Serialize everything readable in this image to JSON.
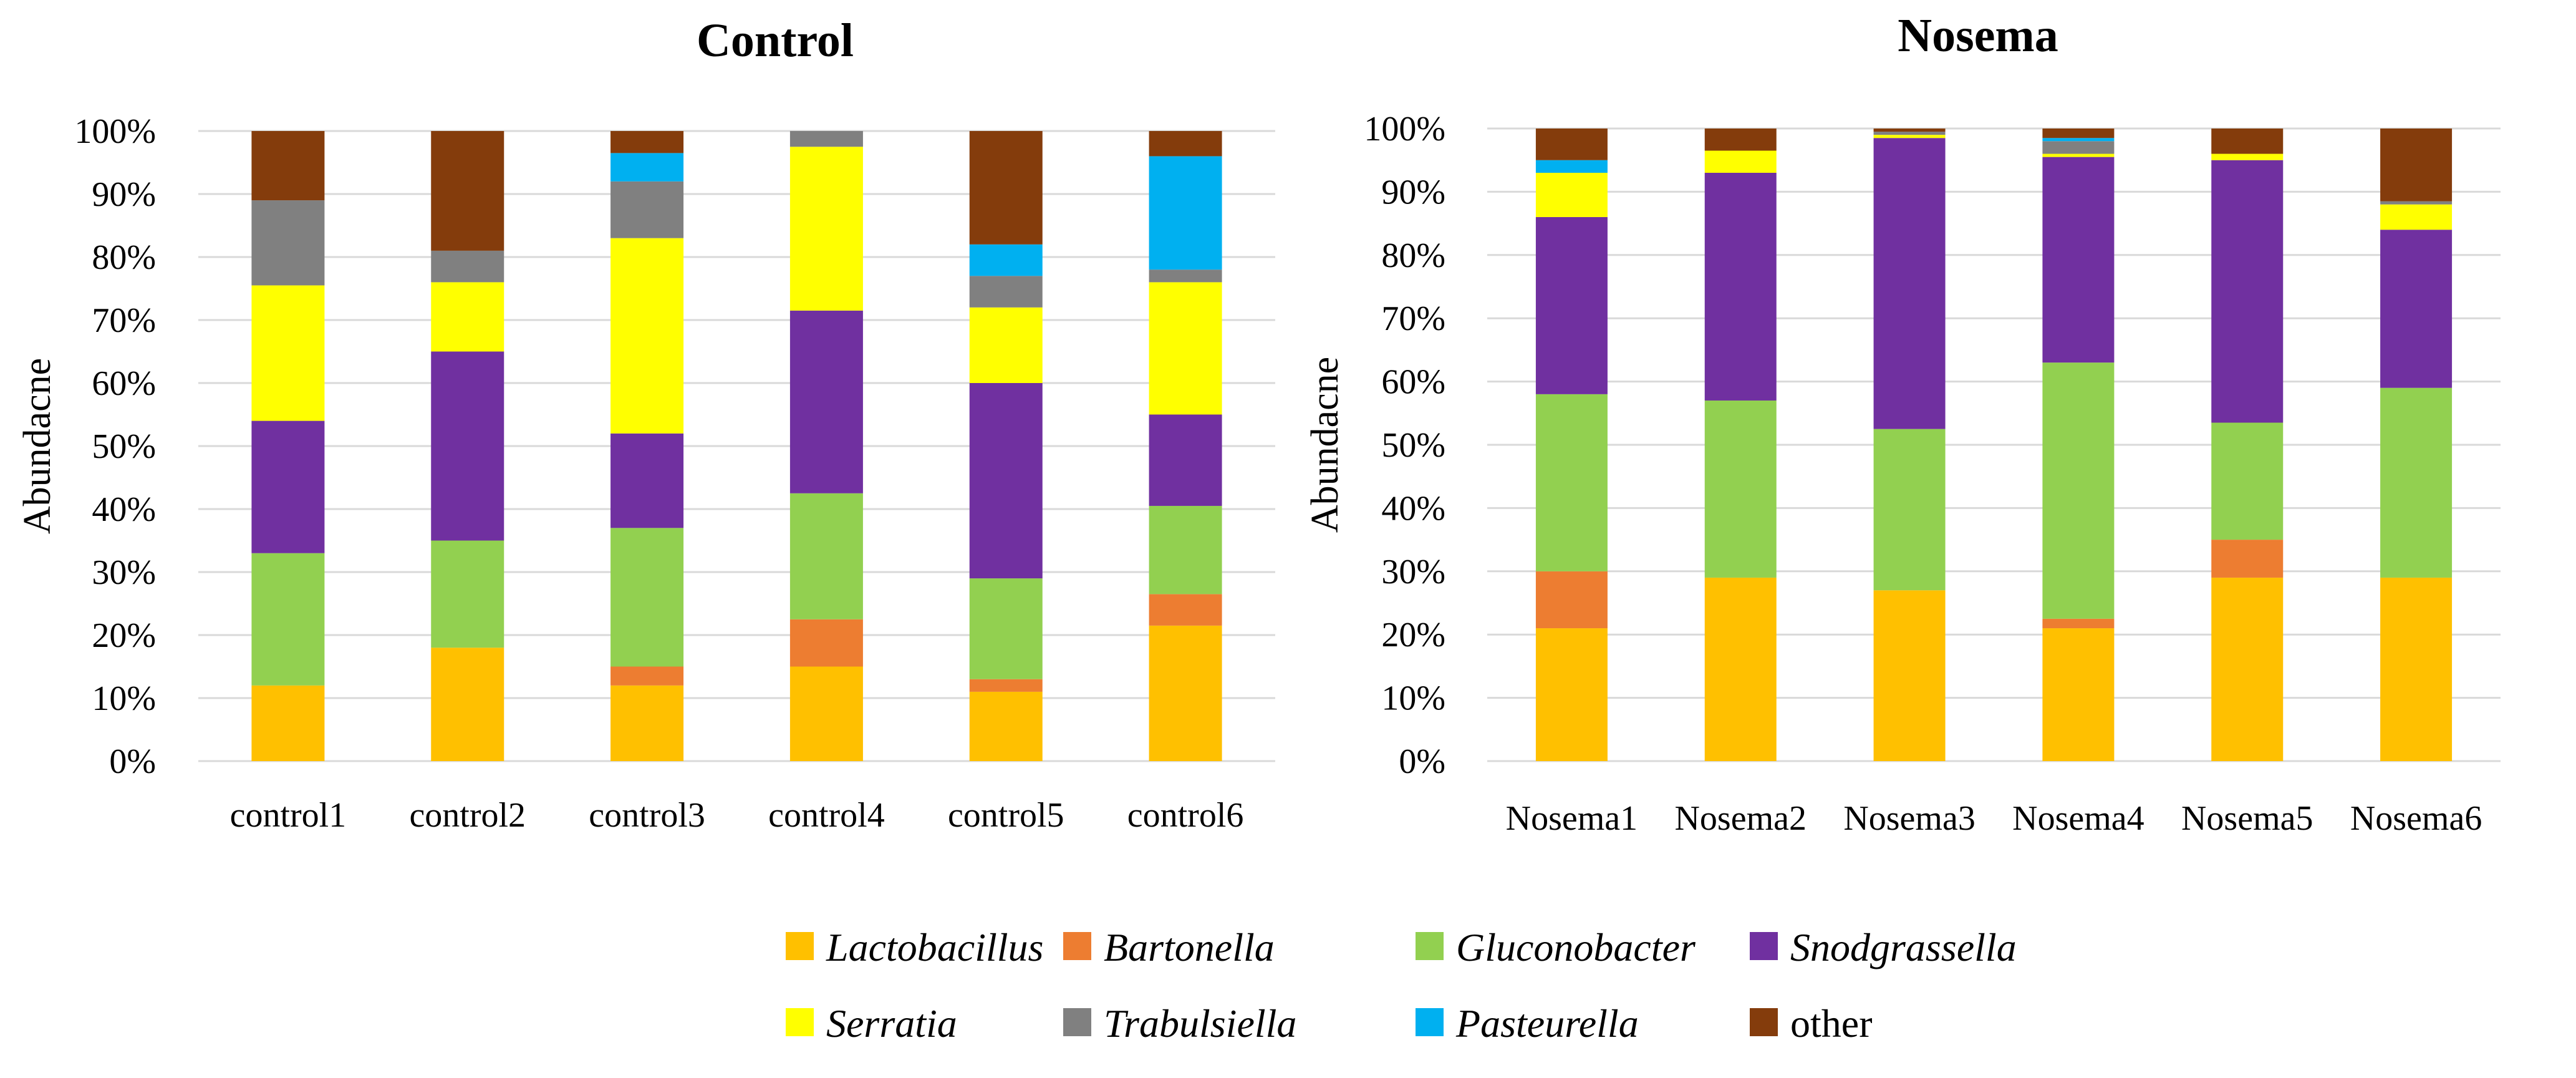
{
  "chart_data": [
    {
      "type": "bar",
      "stacked": true,
      "title": "Control",
      "xlabel": "",
      "ylabel": "Abundacne",
      "ylim": [
        0,
        100
      ],
      "yticks": [
        "0%",
        "10%",
        "20%",
        "30%",
        "40%",
        "50%",
        "60%",
        "70%",
        "80%",
        "90%",
        "100%"
      ],
      "categories": [
        "control1",
        "control2",
        "control3",
        "control4",
        "control5",
        "control6"
      ],
      "series": [
        {
          "name": "Lactobacillus",
          "values": [
            12,
            18,
            12,
            15,
            11,
            21.5
          ]
        },
        {
          "name": "Bartonella",
          "values": [
            0,
            0,
            3,
            7.5,
            2,
            5
          ]
        },
        {
          "name": "Gluconobacter",
          "values": [
            21,
            17,
            22,
            20,
            16,
            14
          ]
        },
        {
          "name": "Snodgrassella",
          "values": [
            21,
            30,
            15,
            29,
            31,
            14.5
          ]
        },
        {
          "name": "Serratia",
          "values": [
            21.5,
            11,
            31,
            26,
            12,
            21
          ]
        },
        {
          "name": "Trabulsiella",
          "values": [
            13.5,
            5,
            9,
            2.5,
            5,
            2
          ]
        },
        {
          "name": "Pasteurella",
          "values": [
            0,
            0,
            4.5,
            0,
            5,
            18
          ]
        },
        {
          "name": "other",
          "values": [
            11,
            19,
            3.5,
            0,
            18,
            4
          ]
        }
      ]
    },
    {
      "type": "bar",
      "stacked": true,
      "title": "Nosema",
      "xlabel": "",
      "ylabel": "Abundacne",
      "ylim": [
        0,
        100
      ],
      "yticks": [
        "0%",
        "10%",
        "20%",
        "30%",
        "40%",
        "50%",
        "60%",
        "70%",
        "80%",
        "90%",
        "100%"
      ],
      "categories": [
        "Nosema1",
        "Nosema2",
        "Nosema3",
        "Nosema4",
        "Nosema5",
        "Nosema6"
      ],
      "series": [
        {
          "name": "Lactobacillus",
          "values": [
            21,
            29,
            27,
            21,
            29,
            29
          ]
        },
        {
          "name": "Bartonella",
          "values": [
            9,
            0,
            0,
            1.5,
            6,
            0
          ]
        },
        {
          "name": "Gluconobacter",
          "values": [
            28,
            28,
            25.5,
            40.5,
            18.5,
            30
          ]
        },
        {
          "name": "Snodgrassella",
          "values": [
            28,
            36,
            46,
            32.5,
            41.5,
            25
          ]
        },
        {
          "name": "Serratia",
          "values": [
            7,
            3.5,
            0.5,
            0.5,
            1,
            4
          ]
        },
        {
          "name": "Trabulsiella",
          "values": [
            0,
            0,
            0.5,
            2,
            0,
            0.5
          ]
        },
        {
          "name": "Pasteurella",
          "values": [
            2,
            0,
            0,
            0.5,
            0,
            0
          ]
        },
        {
          "name": "other",
          "values": [
            5,
            3.5,
            0.5,
            1.5,
            4,
            11.5
          ]
        }
      ]
    }
  ],
  "legend": {
    "items": [
      {
        "label": "Lactobacillus",
        "italic": true,
        "color": "#FFC000"
      },
      {
        "label": "Bartonella",
        "italic": true,
        "color": "#ED7D31"
      },
      {
        "label": "Gluconobacter",
        "italic": true,
        "color": "#92D050"
      },
      {
        "label": "Snodgrassella",
        "italic": true,
        "color": "#7030A0"
      },
      {
        "label": "Serratia",
        "italic": true,
        "color": "#FFFF00"
      },
      {
        "label": "Trabulsiella",
        "italic": true,
        "color": "#808080"
      },
      {
        "label": "Pasteurella",
        "italic": true,
        "color": "#00B0F0"
      },
      {
        "label": "other",
        "italic": false,
        "color": "#843C0C"
      }
    ]
  }
}
